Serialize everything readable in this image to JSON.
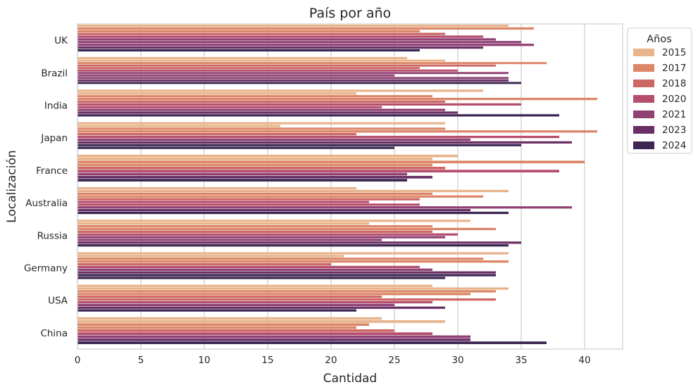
{
  "chart_data": {
    "type": "bar",
    "orientation": "horizontal",
    "title": "País por año",
    "xlabel": "Cantidad",
    "ylabel": "Localización",
    "xlim": [
      0,
      43
    ],
    "xticks": [
      0,
      5,
      10,
      15,
      20,
      25,
      30,
      35,
      40
    ],
    "grid": "vertical",
    "legend": {
      "title": "Años",
      "placement": "top-right-outside"
    },
    "categories": [
      "UK",
      "Brazil",
      "India",
      "Japan",
      "France",
      "Australia",
      "Russia",
      "Germany",
      "USA",
      "China"
    ],
    "series_groups": [
      {
        "label": "2015",
        "color": "#e8b48c",
        "values": [
          [
            34
          ],
          [
            26,
            29
          ],
          [
            32,
            22
          ],
          [
            29,
            16
          ],
          [
            30,
            28
          ],
          [
            22,
            34
          ],
          [
            31,
            23
          ],
          [
            34,
            21
          ],
          [
            28,
            34
          ],
          [
            24,
            29
          ]
        ]
      },
      {
        "label": "2017",
        "color": "#dc8668",
        "values": [
          [
            36,
            27
          ],
          [
            37
          ],
          [
            28,
            41
          ],
          [
            29,
            41
          ],
          [
            40,
            28
          ],
          [
            28,
            32
          ],
          [
            28,
            33
          ],
          [
            32,
            34
          ],
          [
            33,
            31
          ],
          [
            23,
            22
          ]
        ]
      },
      {
        "label": "2018",
        "color": "#cd6764",
        "values": [
          [
            29
          ],
          [
            33,
            27
          ],
          [
            29
          ],
          [
            22
          ],
          [
            29
          ],
          [
            27
          ],
          [
            28
          ],
          [
            20
          ],
          [
            24,
            33
          ],
          [
            25
          ]
        ]
      },
      {
        "label": "2020",
        "color": "#b64e6e",
        "values": [
          [
            32
          ],
          [
            30
          ],
          [
            35,
            24
          ],
          [
            38
          ],
          [
            38
          ],
          [
            23,
            27
          ],
          [
            30
          ],
          [
            27
          ],
          [
            28
          ],
          [
            28
          ]
        ]
      },
      {
        "label": "2021",
        "color": "#904073",
        "values": [
          [
            33,
            35,
            36
          ],
          [
            34,
            25,
            34
          ],
          [
            29
          ],
          [
            31
          ],
          [
            26
          ],
          [
            39
          ],
          [
            29,
            24
          ],
          [
            28
          ],
          [
            25
          ],
          [
            31
          ]
        ]
      },
      {
        "label": "2023",
        "color": "#6a3065",
        "values": [
          [
            32
          ],
          [
            34
          ],
          [
            30
          ],
          [
            39
          ],
          [
            28
          ],
          [
            31
          ],
          [
            35
          ],
          [
            33
          ],
          [
            29
          ],
          [
            31
          ]
        ]
      },
      {
        "label": "2024",
        "color": "#3d2653",
        "values": [
          [
            27
          ],
          [
            35
          ],
          [
            38
          ],
          [
            35,
            25
          ],
          [
            26
          ],
          [
            34
          ],
          [
            34
          ],
          [
            33,
            29
          ],
          [
            22
          ],
          [
            37
          ]
        ]
      }
    ]
  }
}
